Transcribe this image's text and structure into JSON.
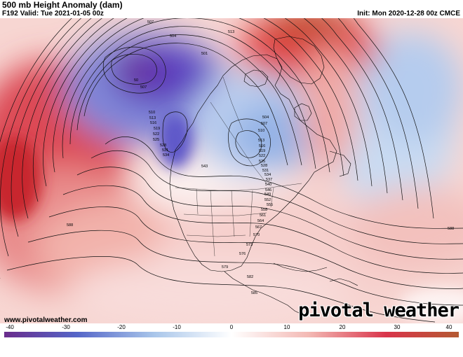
{
  "header": {
    "title": "500 mb Height Anomaly (dam)",
    "valid": "F192 Valid: Tue 2021-01-05 00z",
    "init": "Init: Mon 2020-12-28 00z CMCE"
  },
  "footer": {
    "source": "www.pivotalweather.com",
    "brand": "pivotal weather"
  },
  "colorbar": {
    "ticks": [
      "-40",
      "-30",
      "-20",
      "-10",
      "0",
      "10",
      "20",
      "30",
      "40"
    ],
    "min": -40,
    "max": 40,
    "colors": [
      "#6a2c8c",
      "#5566c8",
      "#a9c6ea",
      "#ffffff",
      "#f3b9b4",
      "#d9344a",
      "#b45a32"
    ]
  },
  "map": {
    "contour_labels": [
      "507",
      "504",
      "513",
      "501",
      "50",
      "507",
      "510",
      "513",
      "516",
      "519",
      "522",
      "525",
      "528",
      "531",
      "534",
      "543",
      "504",
      "507",
      "510",
      "513",
      "516",
      "519",
      "522",
      "525",
      "528",
      "531",
      "534",
      "537",
      "540",
      "546",
      "549",
      "552",
      "555",
      "558",
      "561",
      "564",
      "567",
      "570",
      "573",
      "576",
      "579",
      "582",
      "585",
      "588",
      "588"
    ]
  }
}
